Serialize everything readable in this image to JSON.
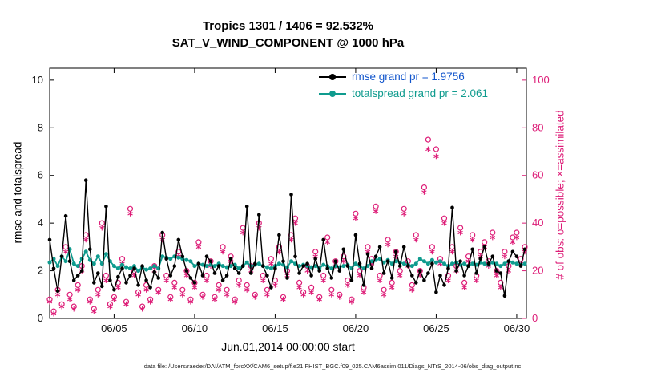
{
  "title": {
    "line1": "Tropics 1301 / 1406 = 92.532%",
    "line2": "SAT_V_WIND_COMPONENT @ 1000 hPa"
  },
  "legend": {
    "items": [
      {
        "label": "rmse grand pr = 1.9756",
        "line_color": "#000000",
        "text_color": "#1155CC"
      },
      {
        "label": "totalspread grand pr = 2.061",
        "line_color": "#0F9B8E",
        "text_color": "#0F9B8E"
      }
    ]
  },
  "caption": {
    "text": "data file: /Users/raeder/DAI/ATM_forcXX/CAM6_setup/f.e21.FHIST_BGC.f09_025.CAM6assim.011/Diags_NTrS_2014-06/obs_diag_output.nc"
  },
  "chart_data": {
    "type": "line",
    "title": "Tropics 1301 / 1406 = 92.532% | SAT_V_WIND_COMPONENT @ 1000 hPa",
    "xlabel": "Jun.01,2014 00:00:00 start",
    "x_unit": "day of June 2014",
    "x_start_day": 1,
    "x_step_days": 0.25,
    "xlim": [
      1,
      30.6
    ],
    "grid": false,
    "legend_position": "top-right-inside",
    "left_axis": {
      "label": "rmse and totalspread",
      "lim": [
        0,
        10.5
      ],
      "ticks": [
        0,
        2,
        4,
        6,
        8,
        10
      ],
      "color": "#000000"
    },
    "right_axis": {
      "label": "# of obs: o=possible; ×=assimilated",
      "lim": [
        0,
        105
      ],
      "ticks": [
        0,
        20,
        40,
        60,
        80,
        100
      ],
      "color": "#DD1C77"
    },
    "x_ticks": [
      {
        "value": 5,
        "label": "06/05"
      },
      {
        "value": 10,
        "label": "06/10"
      },
      {
        "value": 15,
        "label": "06/15"
      },
      {
        "value": 20,
        "label": "06/20"
      },
      {
        "value": 25,
        "label": "06/25"
      },
      {
        "value": 30,
        "label": "06/30"
      }
    ],
    "series": [
      {
        "name": "rmse",
        "grand_pr": 1.9756,
        "axis": "left",
        "color": "#000000",
        "marker": "dot",
        "line": true,
        "values": [
          3.3,
          2.1,
          1.15,
          2.6,
          4.3,
          2.4,
          1.6,
          1.8,
          2.0,
          5.8,
          2.9,
          1.5,
          1.9,
          1.35,
          4.7,
          1.6,
          1.2,
          1.75,
          2.1,
          1.5,
          1.8,
          2.1,
          1.4,
          2.2,
          1.6,
          1.3,
          1.95,
          1.7,
          3.6,
          2.5,
          1.8,
          2.2,
          3.3,
          2.6,
          2.0,
          1.7,
          1.5,
          2.3,
          1.8,
          2.6,
          2.4,
          1.9,
          2.2,
          1.6,
          1.8,
          2.5,
          2.1,
          1.9,
          2.2,
          4.7,
          1.9,
          2.3,
          4.35,
          2.2,
          1.8,
          1.3,
          2.1,
          3.5,
          2.4,
          1.7,
          5.2,
          2.6,
          1.9,
          2.2,
          2.3,
          1.8,
          2.5,
          2.0,
          3.3,
          2.1,
          1.7,
          2.4,
          2.0,
          2.9,
          2.2,
          1.6,
          3.5,
          2.3,
          1.4,
          2.7,
          2.1,
          2.6,
          3.0,
          1.9,
          2.4,
          1.7,
          2.8,
          2.2,
          3.0,
          2.2,
          1.8,
          1.5,
          2.0,
          1.6,
          1.9,
          2.3,
          1.1,
          1.8,
          1.4,
          2.1,
          4.65,
          2.0,
          2.4,
          1.8,
          2.2,
          2.9,
          1.9,
          2.5,
          3.0,
          2.3,
          2.6,
          2.0,
          1.9,
          0.95,
          2.4,
          2.8,
          2.6,
          2.2,
          2.9
        ]
      },
      {
        "name": "totalspread",
        "grand_pr": 2.061,
        "axis": "left",
        "color": "#0F9B8E",
        "marker": "dot",
        "line": true,
        "values": [
          2.35,
          2.5,
          2.2,
          2.6,
          2.4,
          2.9,
          2.3,
          2.2,
          2.5,
          2.8,
          2.45,
          2.3,
          2.6,
          2.3,
          2.7,
          2.4,
          2.2,
          2.1,
          2.25,
          2.15,
          2.1,
          2.2,
          2.0,
          2.15,
          2.05,
          2.1,
          2.2,
          2.1,
          2.6,
          2.55,
          2.5,
          2.6,
          2.55,
          2.5,
          2.45,
          2.4,
          2.2,
          2.3,
          2.25,
          2.2,
          2.25,
          2.2,
          2.3,
          2.2,
          2.15,
          2.2,
          2.25,
          2.1,
          2.2,
          2.35,
          2.2,
          2.25,
          2.3,
          2.2,
          2.15,
          2.1,
          2.2,
          2.3,
          2.25,
          2.15,
          2.4,
          2.3,
          2.2,
          2.25,
          2.2,
          2.15,
          2.2,
          2.1,
          2.25,
          2.2,
          2.1,
          2.2,
          2.15,
          2.2,
          2.25,
          2.1,
          2.3,
          2.2,
          2.1,
          2.2,
          2.4,
          2.45,
          2.5,
          2.35,
          2.45,
          2.3,
          2.4,
          2.35,
          2.3,
          2.25,
          2.2,
          2.3,
          2.5,
          2.4,
          2.3,
          2.45,
          2.35,
          2.4,
          2.3,
          2.2,
          2.3,
          2.35,
          2.25,
          2.3,
          2.2,
          2.3,
          2.25,
          2.35,
          2.3,
          2.25,
          2.35,
          2.3,
          2.2,
          2.3,
          2.4,
          2.35,
          2.3,
          2.25,
          2.3
        ]
      },
      {
        "name": "possible",
        "axis": "right",
        "color": "#DD1C77",
        "marker": "open-circle",
        "line": false,
        "values": [
          8,
          3,
          12,
          6,
          30,
          10,
          5,
          14,
          22,
          35,
          8,
          4,
          12,
          40,
          18,
          6,
          9,
          15,
          25,
          7,
          46,
          20,
          11,
          5,
          14,
          8,
          22,
          12,
          35,
          18,
          9,
          15,
          28,
          12,
          20,
          8,
          15,
          32,
          10,
          18,
          24,
          9,
          14,
          30,
          12,
          26,
          8,
          16,
          38,
          14,
          22,
          10,
          40,
          18,
          12,
          25,
          16,
          30,
          9,
          20,
          35,
          42,
          15,
          11,
          22,
          13,
          28,
          9,
          18,
          34,
          12,
          24,
          10,
          26,
          16,
          8,
          44,
          20,
          13,
          30,
          25,
          47,
          18,
          12,
          33,
          15,
          28,
          20,
          46,
          24,
          14,
          35,
          20,
          55,
          75,
          30,
          71,
          25,
          42,
          18,
          30,
          22,
          38,
          15,
          26,
          35,
          18,
          28,
          32,
          24,
          36,
          20,
          15,
          28,
          22,
          34,
          36,
          25,
          30
        ]
      },
      {
        "name": "assimilated",
        "axis": "right",
        "color": "#DD1C77",
        "marker": "asterisk",
        "line": false,
        "values": [
          7,
          2,
          10,
          5,
          28,
          8,
          4,
          12,
          20,
          33,
          7,
          3,
          10,
          38,
          16,
          5,
          8,
          13,
          23,
          6,
          44,
          18,
          10,
          4,
          12,
          7,
          20,
          11,
          33,
          16,
          8,
          13,
          26,
          10,
          18,
          7,
          13,
          30,
          9,
          16,
          22,
          8,
          12,
          28,
          10,
          24,
          7,
          14,
          36,
          12,
          20,
          9,
          38,
          16,
          10,
          23,
          14,
          28,
          8,
          18,
          33,
          40,
          13,
          10,
          20,
          11,
          26,
          8,
          16,
          32,
          10,
          22,
          9,
          24,
          14,
          7,
          42,
          18,
          11,
          28,
          23,
          45,
          16,
          10,
          31,
          13,
          26,
          18,
          44,
          22,
          12,
          33,
          18,
          53,
          71,
          28,
          68,
          23,
          40,
          16,
          28,
          20,
          36,
          13,
          24,
          33,
          16,
          26,
          30,
          22,
          34,
          18,
          13,
          26,
          20,
          32,
          34,
          23,
          28
        ]
      }
    ]
  }
}
